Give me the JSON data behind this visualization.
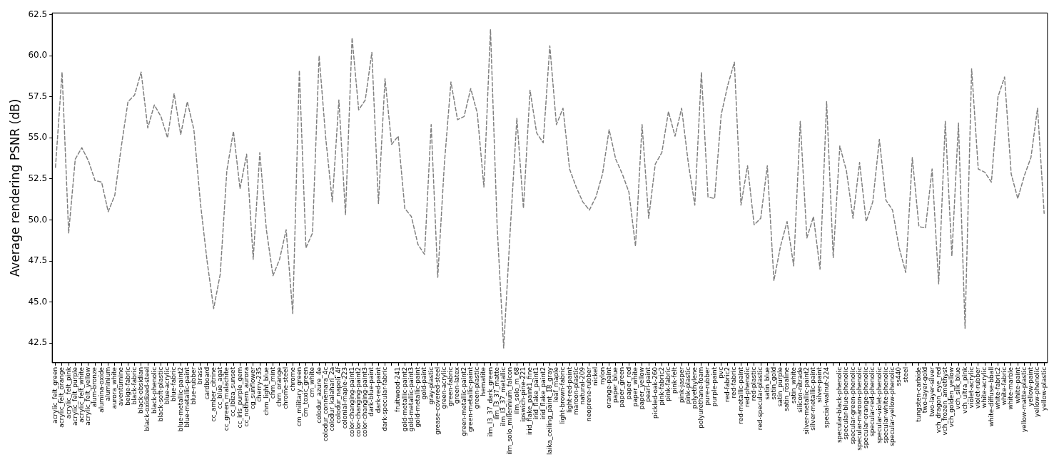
{
  "chart_data": {
    "type": "line",
    "ylabel": "Average rendering PSNR (dB)",
    "categories": [
      "acrylic_felt_green",
      "acrylic_felt_orange",
      "acrylic_felt_pink",
      "acrylic_felt_purple",
      "acrylic_felt_white",
      "acrylic_felt_yellow",
      "alum-bronze",
      "alumina-oxide",
      "aluminium",
      "aurora_white",
      "aventurnine",
      "beige-fabric",
      "black-fabric",
      "black-obsidian",
      "black-oxidized-steel",
      "black-phenolic",
      "black-soft-plastic",
      "blue-acrylic",
      "blue-fabric",
      "blue-metallic-paint2",
      "blue-metallic-paint",
      "blue-rubber",
      "brass",
      "cardboard",
      "cc_amber_citrine",
      "cc_blue_agat",
      "cc_green_malachite",
      "cc_ibiza_sunset",
      "cc_iris_purple_gem",
      "cc_nothern_aurora",
      "cg_sunflower",
      "cherry-235",
      "chm_light_blue",
      "chm_mint",
      "chm_orange",
      "chrome-steel",
      "chrome",
      "cm_military_green",
      "cm_toxic_green",
      "cm_white",
      "colodur_azure_4e",
      "colodur_connemara_4c",
      "colodur_kalahari_2a",
      "colodur_napoli_4f",
      "colonial-maple-223",
      "color-changing-paint1",
      "color-changing-paint2",
      "color-changing-paint3",
      "dark-blue-paint",
      "dark-red-paint",
      "dark-specular-fabric",
      null,
      "fruitwood-241",
      "gold-metallic-paint2",
      "gold-metallic-paint3",
      "gold-metallic-paint",
      "gold-paint",
      "gray-plastic",
      "grease-covered-steel",
      "green-acrylic",
      "green-fabric",
      "green-latex",
      "green-metallic-paint2",
      "green-metallic-paint",
      "green-plastic",
      "hematite",
      "ilm_l3_37_dark_green",
      "ilm_l3_37_matte",
      "ilm_l3_37_metallic",
      "ilm_solo_millennium_falcon",
      "ilm_solo_m_68",
      "ipswich-pine-221",
      "irid_flake_paint1_fine",
      "irid_flake_paint1",
      "irid_flake_paint2",
      "laika_ceiling_paint_18_gray",
      "leaf_maple",
      "light-brown-fabric",
      "light-red-paint",
      "maroon-plastic",
      "natural-209",
      "neoprene-rubber",
      "nickel",
      "nylon",
      "orange-paint",
      "paper_blue",
      "paper_green",
      "paper_red",
      "paper_white",
      "paper_yellow",
      "pearl-paint",
      "pickled-oak-260",
      "pink-fabric2",
      "pink-fabric",
      "pink-felt",
      "pink-jasper",
      "pink-plastic",
      "polyethylene",
      "polyurethane-foam",
      "pure-rubber",
      "purple-paint",
      "pvc",
      "red-fabric2",
      "red-fabric",
      "red-metallic-paint",
      "red-phenolic",
      "red-plastic",
      "red-specular-plastic",
      "satin_blue",
      "satin_gold",
      "satin_purple",
      "satin_rosaline",
      "satin_white",
      "silicon-nitrade",
      "silver-metallic-paint2",
      "silver-metallic-paint",
      "silver-paint",
      "special-walnut-224",
      null,
      "specular-black-phenolic",
      "specular-blue-phenolic",
      "specular-green-phenolic",
      "specular-maroon-phenolic",
      "specular-orange-phenolic",
      "specular-red-phenolic",
      "specular-violet-phenolic",
      "specular-white-phenolic",
      "specular-yellow-phenolic",
      "ss440",
      "steel",
      null,
      "tungsten-carbide",
      "two-layer-gold",
      "two-layer-silver",
      "vch_dragon_eye_red",
      "vch_frozen_amethyst",
      "vch_golden_yellow",
      "vch_silk_blue",
      "vch_ultra_pink",
      "violet-acrylic",
      "violet-rubber",
      "white-acrylic",
      "white-diffuse-bball",
      "white-fabric2",
      "white-fabric",
      "white-marble",
      "white-paint",
      "yellow-matte-plastic",
      "yellow-paint",
      "yellow-phenolic",
      "yellow-plastic"
    ],
    "series": [
      {
        "color": "#808080",
        "values": [
          53.2,
          59.0,
          49.2,
          53.7,
          54.4,
          53.6,
          52.4,
          52.3,
          50.5,
          51.5,
          54.5,
          57.2,
          57.6,
          59.0,
          55.6,
          57.0,
          56.3,
          55.0,
          57.7,
          55.2,
          57.2,
          55.5,
          51.0,
          47.5,
          44.6,
          46.7,
          53.0,
          55.4,
          51.9,
          54.0,
          47.6,
          54.1,
          49.4,
          46.6,
          47.6,
          49.4,
          44.3,
          59.1,
          48.3,
          49.2,
          60.0,
          55.0,
          51.1,
          57.3,
          50.3,
          61.1,
          56.7,
          57.3,
          60.2,
          51.0,
          58.6,
          54.6,
          55.1,
          50.7,
          50.2,
          48.5,
          47.9,
          55.8,
          46.5,
          53.4,
          58.4,
          56.1,
          56.3,
          58.0,
          56.5,
          52.0,
          61.6,
          49.7,
          42.2,
          49.4,
          56.2,
          50.7,
          57.9,
          55.3,
          54.7,
          60.6,
          55.8,
          56.8,
          53.1,
          52.0,
          51.1,
          50.6,
          51.4,
          52.8,
          55.5,
          53.7,
          52.8,
          51.7,
          48.4,
          55.8,
          50.1,
          53.4,
          54.1,
          56.6,
          55.1,
          56.8,
          53.5,
          50.9,
          59.0,
          51.4,
          51.3,
          56.4,
          58.2,
          59.6,
          50.9,
          53.3,
          49.7,
          50.1,
          53.3,
          46.3,
          48.4,
          49.9,
          47.2,
          56.0,
          48.9,
          50.2,
          47.0,
          57.2,
          47.7,
          54.5,
          53.0,
          50.1,
          53.5,
          49.9,
          51.1,
          54.9,
          51.2,
          50.6,
          48.3,
          46.8,
          53.8,
          49.6,
          49.5,
          53.1,
          46.1,
          56.0,
          47.8,
          55.9,
          43.4,
          59.2,
          53.1,
          52.9,
          52.3,
          57.5,
          58.7,
          52.8,
          51.3,
          52.7,
          53.8,
          56.8,
          50.4
        ]
      }
    ],
    "ylim": [
      41.3,
      62.6
    ],
    "yticks": [
      42.5,
      {
        "value": 45,
        "label": "45.0"
      },
      47.5,
      {
        "value": 50,
        "label": "50.0"
      },
      52.5,
      {
        "value": 55,
        "label": "55.0"
      },
      57.5,
      {
        "value": 60,
        "label": "60.0"
      },
      62.5
    ],
    "line_style": "dashed",
    "marker": "none",
    "legend": false
  }
}
